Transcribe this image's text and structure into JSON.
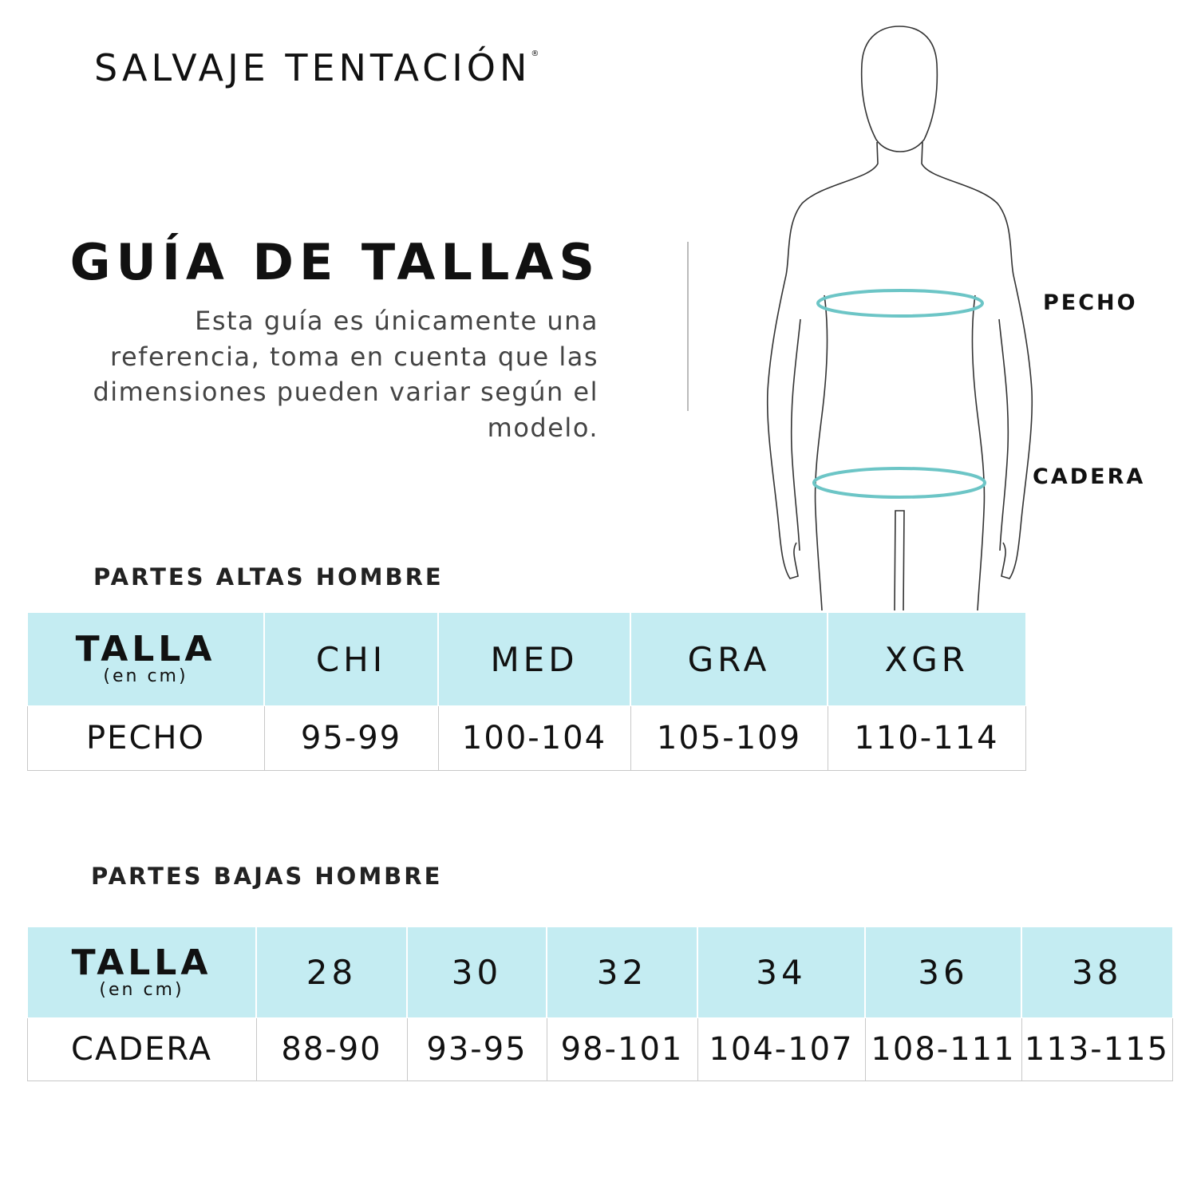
{
  "brand": {
    "name": "SALVAJE TENTACIÓN",
    "mark": "®"
  },
  "header": {
    "title": "GUÍA DE TALLAS",
    "description": "Esta guía es únicamente una referencia, toma en cuenta que las dimensiones pueden variar según el modelo."
  },
  "figure": {
    "labels": {
      "chest": "PECHO",
      "hip": "CADERA"
    },
    "ring_color": "#6cc5c6"
  },
  "colors": {
    "header_cell": "#c4ecf2"
  },
  "tops": {
    "section_title": "PARTES ALTAS HOMBRE",
    "size_label": "TALLA",
    "unit": "(en cm)",
    "sizes": [
      "CHI",
      "MED",
      "GRA",
      "XGR"
    ],
    "row_label": "PECHO",
    "values": [
      "95-99",
      "100-104",
      "105-109",
      "110-114"
    ]
  },
  "bottoms": {
    "section_title": "PARTES BAJAS HOMBRE",
    "size_label": "TALLA",
    "unit": "(en cm)",
    "sizes": [
      "28",
      "30",
      "32",
      "34",
      "36",
      "38"
    ],
    "row_label": "CADERA",
    "values": [
      "88-90",
      "93-95",
      "98-101",
      "104-107",
      "108-111",
      "113-115"
    ]
  }
}
